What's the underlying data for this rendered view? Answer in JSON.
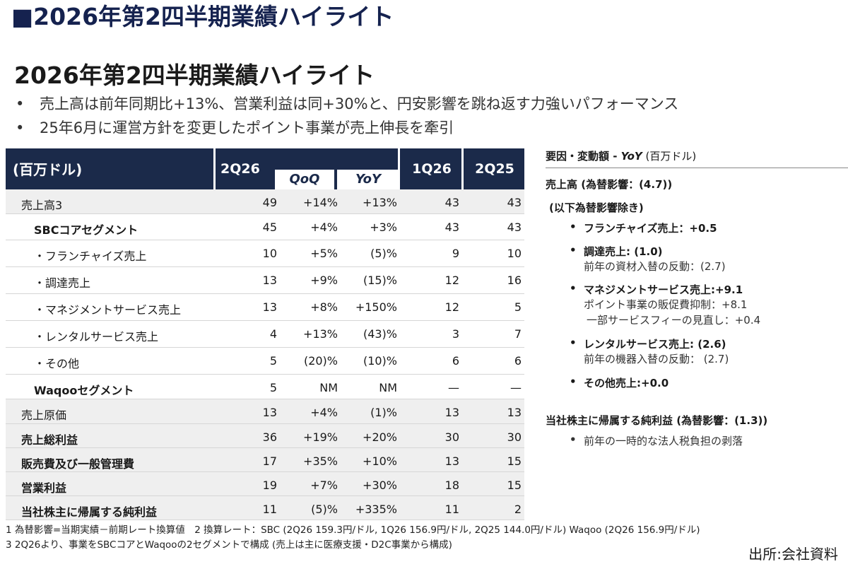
{
  "slide_title": "■2026年第2四半期業績ハイライト",
  "headline": "2026年第2四半期業績ハイライト",
  "bullets": [
    "売上高は前年同期比+13%、営業利益は同+30%と、円安影響を跳ね返す力強いパフォーマンス",
    "25年6月に運営方針を変更したポイント事業が売上伸長を牽引"
  ],
  "table": {
    "header": {
      "label": "(百万ドル)",
      "col_2q26": "2Q26",
      "qoq": "QoQ",
      "yoy": "YoY",
      "col_1q26": "1Q26",
      "col_2q25": "2Q25"
    },
    "rows": [
      {
        "label": "売上高3",
        "v": [
          "49",
          "+14%",
          "+13%",
          "43",
          "43"
        ]
      },
      {
        "label": "SBCコアセグメント",
        "v": [
          "45",
          "+4%",
          "+3%",
          "43",
          "43"
        ]
      },
      {
        "label": "・フランチャイズ売上",
        "v": [
          "10",
          "+5%",
          "(5)%",
          "9",
          "10"
        ]
      },
      {
        "label": "・調達売上",
        "v": [
          "13",
          "+9%",
          "(15)%",
          "12",
          "16"
        ]
      },
      {
        "label": "・マネジメントサービス売上",
        "v": [
          "13",
          "+8%",
          "+150%",
          "12",
          "5"
        ]
      },
      {
        "label": "・レンタルサービス売上",
        "v": [
          "4",
          "+13%",
          "(43)%",
          "3",
          "7"
        ]
      },
      {
        "label": "・その他",
        "v": [
          "5",
          "(20)%",
          "(10)%",
          "6",
          "6"
        ]
      },
      {
        "label": "Waqooセグメント",
        "v": [
          "5",
          "NM",
          "NM",
          "—",
          "—"
        ]
      },
      {
        "label": "売上原価",
        "v": [
          "13",
          "+4%",
          "(1)%",
          "13",
          "13"
        ]
      },
      {
        "label": "売上総利益",
        "v": [
          "36",
          "+19%",
          "+20%",
          "30",
          "30"
        ]
      },
      {
        "label": "販売費及び一般管理費",
        "v": [
          "17",
          "+35%",
          "+10%",
          "13",
          "15"
        ]
      },
      {
        "label": "営業利益",
        "v": [
          "19",
          "+7%",
          "+30%",
          "18",
          "15"
        ]
      },
      {
        "label": "当社株主に帰属する純利益",
        "v": [
          "11",
          "(5)%",
          "+335%",
          "11",
          "2"
        ]
      }
    ]
  },
  "right_panel": {
    "heading_prefix": "要因・変動額 - ",
    "heading_yoy": "YoY",
    "heading_suffix": " (百万ドル)",
    "sales_title": "売上高 (為替影響：(4.7))",
    "sales_sub": "(以下為替影響除き)",
    "franchise": "フランチャイズ売上：+0.5",
    "procurement": "調達売上:  (1.0)",
    "procurement_note": "前年の資材入替の反動：(2.7)",
    "management": "マネジメントサービス売上:+9.1",
    "management_note1": "ポイント事業の販促費抑制：+8.1",
    "management_note2": "一部サービスフィーの見直し：+0.4",
    "rental": "レンタルサービス売上: (2.6)",
    "rental_note": "前年の機器入替の反動： (2.7)",
    "other": "その他売上:+0.0",
    "net_title": "当社株主に帰属する純利益 (為替影響：(1.3))",
    "net_note": "前年の一時的な法人税負担の剥落"
  },
  "footnotes": [
    "1 為替影響=当期実績－前期レート換算値　2 換算レート：SBC (2Q26 159.3円/ドル, 1Q26 156.9円/ドル, 2Q25 144.0円/ドル)  Waqoo (2Q26 156.9円/ドル)",
    "3 2Q26より、事業をSBCコアとWaqooの2セグメントで構成 (売上は主に医療支援・D2C事業から構成)"
  ],
  "source": "出所:会社資料"
}
